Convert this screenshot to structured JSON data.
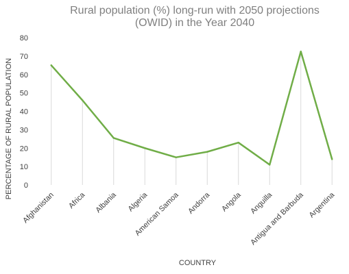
{
  "chart_data": {
    "type": "line",
    "title_line1": "Rural population (%) long-run with 2050 projections",
    "title_line2": "(OWID) in the Year 2040",
    "xlabel": "COUNTRY",
    "ylabel": "PERCENTAGE OF RURAL  POPULATION",
    "categories": [
      "Afghanistan",
      "Africa",
      "Albania",
      "Algeria",
      "American Samoa",
      "Andorra",
      "Angola",
      "Anguilla",
      "Antigua and Barbuda",
      "Argentina"
    ],
    "series": [
      {
        "values": [
          65,
          46,
          25.5,
          20,
          15,
          18,
          23,
          11,
          72.5,
          14
        ]
      }
    ],
    "ylim": [
      0,
      80
    ],
    "yticks": [
      0,
      10,
      20,
      30,
      40,
      50,
      60,
      70,
      80
    ],
    "line_color": "#70ad47",
    "drop_line_color": "#d9d9d9",
    "gridlines": false
  }
}
